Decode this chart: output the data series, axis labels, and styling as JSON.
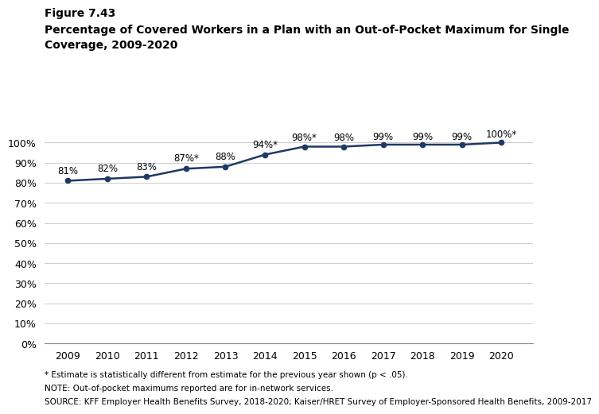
{
  "figure_label": "Figure 7.43",
  "title_line1": "Percentage of Covered Workers in a Plan with an Out-of-Pocket Maximum for Single",
  "title_line2": "Coverage, 2009-2020",
  "years": [
    2009,
    2010,
    2011,
    2012,
    2013,
    2014,
    2015,
    2016,
    2017,
    2018,
    2019,
    2020
  ],
  "values": [
    81,
    82,
    83,
    87,
    88,
    94,
    98,
    98,
    99,
    99,
    99,
    100
  ],
  "labels": [
    "81%",
    "82%",
    "83%",
    "87%*",
    "88%",
    "94%*",
    "98%*",
    "98%",
    "99%",
    "99%",
    "99%",
    "100%*"
  ],
  "line_color": "#1F3864",
  "marker_color": "#1F3864",
  "footnote1": "* Estimate is statistically different from estimate for the previous year shown (p < .05).",
  "footnote2": "NOTE: Out-of-pocket maximums reported are for in-network services.",
  "footnote3": "SOURCE: KFF Employer Health Benefits Survey, 2018-2020; Kaiser/HRET Survey of Employer-Sponsored Health Benefits, 2009-2017",
  "ylim": [
    0,
    108
  ],
  "yticks": [
    0,
    10,
    20,
    30,
    40,
    50,
    60,
    70,
    80,
    90,
    100
  ],
  "ytick_labels": [
    "0%",
    "10%",
    "20%",
    "30%",
    "40%",
    "50%",
    "60%",
    "70%",
    "80%",
    "90%",
    "100%"
  ],
  "grid_color": "#cccccc",
  "label_offsets_x": [
    0,
    0,
    0,
    0,
    0,
    0,
    0,
    0,
    0,
    0,
    0,
    0
  ],
  "label_offsets_y": [
    2.5,
    2.5,
    2.5,
    2.5,
    2.5,
    2.5,
    2.0,
    2.0,
    1.5,
    1.5,
    1.5,
    1.5
  ]
}
